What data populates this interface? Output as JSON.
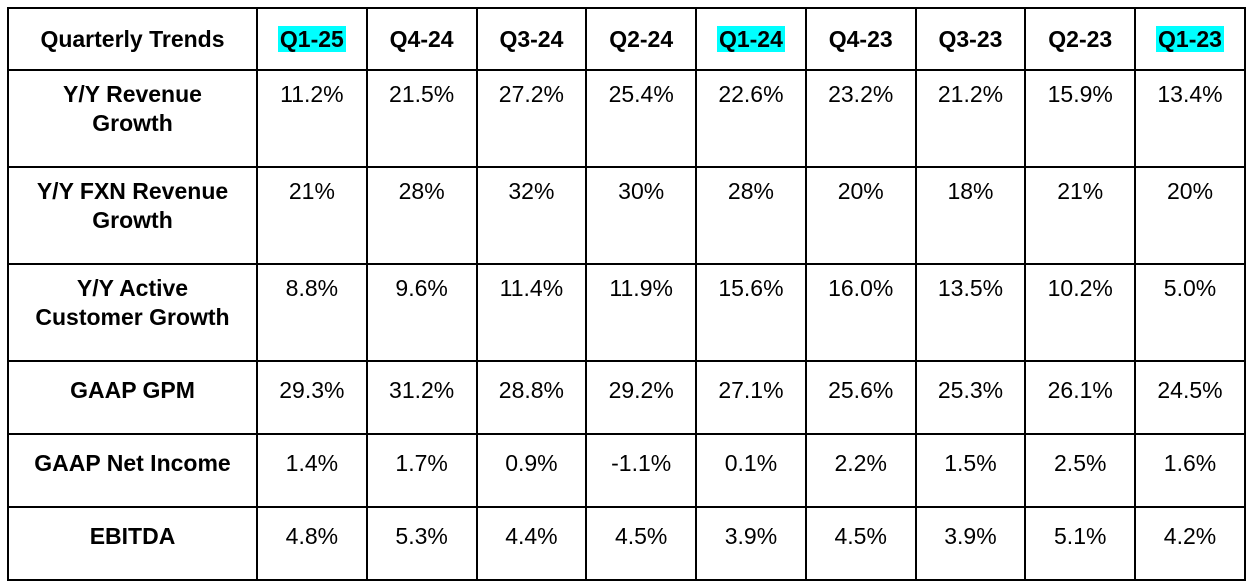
{
  "table": {
    "header_label": "Quarterly Trends",
    "quarters": [
      {
        "label": "Q1-25",
        "highlight": true
      },
      {
        "label": "Q4-24",
        "highlight": false
      },
      {
        "label": "Q3-24",
        "highlight": false
      },
      {
        "label": "Q2-24",
        "highlight": false
      },
      {
        "label": "Q1-24",
        "highlight": true
      },
      {
        "label": "Q4-23",
        "highlight": false
      },
      {
        "label": "Q3-23",
        "highlight": false
      },
      {
        "label": "Q2-23",
        "highlight": false
      },
      {
        "label": "Q1-23",
        "highlight": true
      }
    ],
    "highlight_color": "#00ffff",
    "rows": [
      {
        "label_line1": "Y/Y Revenue",
        "label_line2": "Growth",
        "values": [
          "11.2%",
          "21.5%",
          "27.2%",
          "25.4%",
          "22.6%",
          "23.2%",
          "21.2%",
          "15.9%",
          "13.4%"
        ]
      },
      {
        "label_line1": "Y/Y FXN Revenue",
        "label_line2": "Growth",
        "values": [
          "21%",
          "28%",
          "32%",
          "30%",
          "28%",
          "20%",
          "18%",
          "21%",
          "20%"
        ]
      },
      {
        "label_line1": "Y/Y Active",
        "label_line2": "Customer Growth",
        "values": [
          "8.8%",
          "9.6%",
          "11.4%",
          "11.9%",
          "15.6%",
          "16.0%",
          "13.5%",
          "10.2%",
          "5.0%"
        ]
      },
      {
        "label_line1": "GAAP GPM",
        "label_line2": "",
        "values": [
          "29.3%",
          "31.2%",
          "28.8%",
          "29.2%",
          "27.1%",
          "25.6%",
          "25.3%",
          "26.1%",
          "24.5%"
        ]
      },
      {
        "label_line1": "GAAP Net Income",
        "label_line2": "",
        "values": [
          "1.4%",
          "1.7%",
          "0.9%",
          "-1.1%",
          "0.1%",
          "2.2%",
          "1.5%",
          "2.5%",
          "1.6%"
        ]
      },
      {
        "label_line1": "EBITDA",
        "label_line2": "",
        "values": [
          "4.8%",
          "5.3%",
          "4.4%",
          "4.5%",
          "3.9%",
          "4.5%",
          "3.9%",
          "5.1%",
          "4.2%"
        ]
      }
    ]
  }
}
